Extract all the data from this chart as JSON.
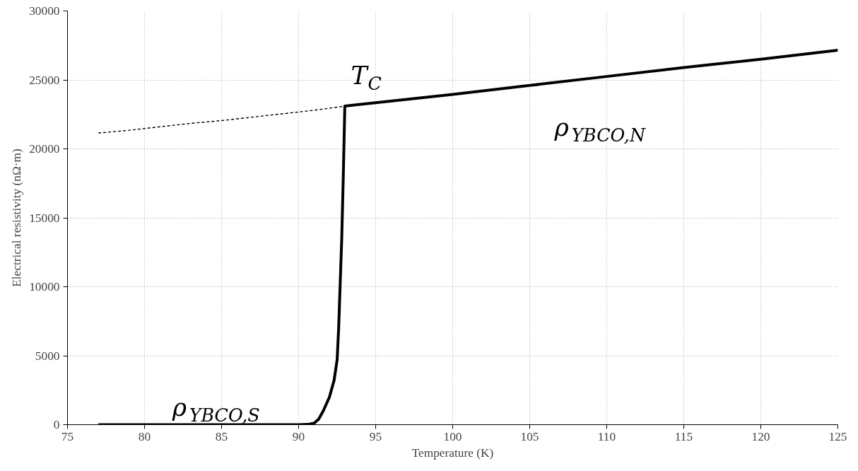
{
  "chart_data": {
    "type": "line",
    "xlabel": "Temperature (K)",
    "ylabel": "Electrical resistivity (nΩ·m)",
    "xlim": [
      75,
      125
    ],
    "xticks": [
      75,
      80,
      85,
      90,
      95,
      100,
      105,
      110,
      115,
      120,
      125
    ],
    "ylim": [
      0,
      30000
    ],
    "yticks": [
      0,
      5000,
      10000,
      15000,
      20000,
      25000,
      30000
    ],
    "grid": true,
    "series": [
      {
        "color": "#000000",
        "line_style": "solid",
        "x": [
          77,
          80,
          85,
          90,
          90.6,
          91.0,
          91.3,
          91.6,
          92.0,
          92.3,
          92.5,
          92.6,
          92.8,
          92.9,
          93.0,
          95,
          100,
          105,
          110,
          115,
          120,
          125
        ],
        "values": [
          0,
          0,
          0,
          0,
          20,
          100,
          400,
          1000,
          2000,
          3200,
          4700,
          7000,
          13500,
          18000,
          23100,
          23350,
          23950,
          24600,
          25250,
          25900,
          26500,
          27150
        ]
      },
      {
        "color": "#000000",
        "line_style": "dashed",
        "x": [
          77,
          79,
          81,
          83,
          85,
          87,
          89,
          91,
          93
        ],
        "values": [
          21150,
          21350,
          21600,
          21850,
          22050,
          22300,
          22550,
          22800,
          23100
        ]
      }
    ],
    "annotations": [
      "T$_{C}$",
      "ρ$_{YBCO,N}$",
      "ρ$_{YBCO,S}$"
    ]
  }
}
